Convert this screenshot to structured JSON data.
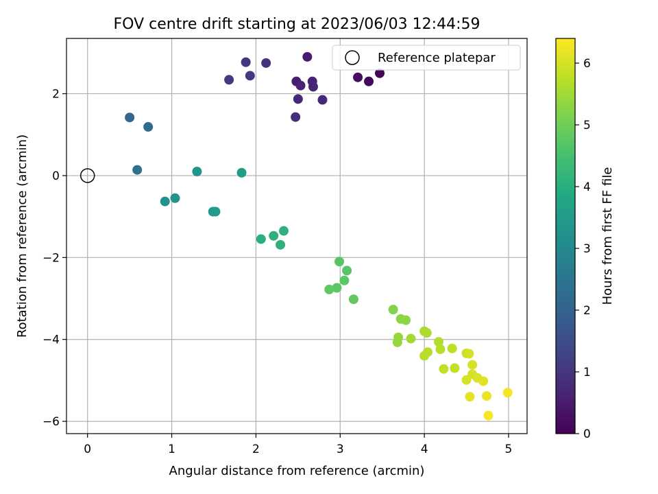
{
  "chart_data": {
    "type": "scatter",
    "title": "FOV centre drift starting at 2023/06/03 12:44:59",
    "xlabel": "Angular distance from reference (arcmin)",
    "ylabel": "Rotation from reference (arcmin)",
    "xlim": [
      -0.25,
      5.22
    ],
    "ylim": [
      -6.3,
      3.35
    ],
    "xticks": [
      0,
      1,
      2,
      3,
      4,
      5
    ],
    "xtick_labels": [
      "0",
      "1",
      "2",
      "3",
      "4",
      "5"
    ],
    "yticks": [
      -6,
      -4,
      -2,
      0,
      2
    ],
    "ytick_labels": [
      "−6",
      "−4",
      "−2",
      "0",
      "2"
    ],
    "grid": true,
    "legend": {
      "position": "top-right",
      "entries": [
        "Reference platepar"
      ]
    },
    "reference_point": {
      "x": 0,
      "y": 0,
      "label": "Reference platepar"
    },
    "colorbar": {
      "label": "Hours from first FF file",
      "range": [
        0,
        6.4
      ],
      "ticks": [
        0,
        1,
        2,
        3,
        4,
        5,
        6
      ],
      "tick_labels": [
        "0",
        "1",
        "2",
        "3",
        "4",
        "5",
        "6"
      ],
      "colormap": "viridis"
    },
    "points": [
      {
        "x": 3.47,
        "y": 2.5,
        "h": 0.1
      },
      {
        "x": 3.34,
        "y": 2.3,
        "h": 0.15
      },
      {
        "x": 3.21,
        "y": 2.4,
        "h": 0.25
      },
      {
        "x": 2.61,
        "y": 2.9,
        "h": 0.5
      },
      {
        "x": 2.48,
        "y": 2.3,
        "h": 0.55
      },
      {
        "x": 2.53,
        "y": 2.2,
        "h": 0.6
      },
      {
        "x": 2.67,
        "y": 2.3,
        "h": 0.6
      },
      {
        "x": 2.68,
        "y": 2.17,
        "h": 0.65
      },
      {
        "x": 2.5,
        "y": 1.87,
        "h": 0.7
      },
      {
        "x": 2.79,
        "y": 1.85,
        "h": 0.7
      },
      {
        "x": 2.47,
        "y": 1.43,
        "h": 0.8
      },
      {
        "x": 2.12,
        "y": 2.75,
        "h": 0.95
      },
      {
        "x": 1.88,
        "y": 2.77,
        "h": 1.0
      },
      {
        "x": 1.93,
        "y": 2.44,
        "h": 1.05
      },
      {
        "x": 1.68,
        "y": 2.34,
        "h": 1.1
      },
      {
        "x": 0.5,
        "y": 1.42,
        "h": 2.1
      },
      {
        "x": 0.72,
        "y": 1.19,
        "h": 2.2
      },
      {
        "x": 0.59,
        "y": 0.14,
        "h": 2.4
      },
      {
        "x": 1.3,
        "y": 0.1,
        "h": 3.3
      },
      {
        "x": 1.83,
        "y": 0.07,
        "h": 3.5
      },
      {
        "x": 0.92,
        "y": -0.63,
        "h": 3.2
      },
      {
        "x": 1.04,
        "y": -0.55,
        "h": 3.3
      },
      {
        "x": 1.49,
        "y": -0.88,
        "h": 3.4
      },
      {
        "x": 1.52,
        "y": -0.88,
        "h": 3.5
      },
      {
        "x": 2.06,
        "y": -1.55,
        "h": 4.0
      },
      {
        "x": 2.21,
        "y": -1.47,
        "h": 4.05
      },
      {
        "x": 2.33,
        "y": -1.35,
        "h": 4.1
      },
      {
        "x": 2.29,
        "y": -1.69,
        "h": 4.1
      },
      {
        "x": 2.99,
        "y": -2.1,
        "h": 4.7
      },
      {
        "x": 3.08,
        "y": -2.32,
        "h": 4.7
      },
      {
        "x": 3.05,
        "y": -2.56,
        "h": 4.75
      },
      {
        "x": 2.96,
        "y": -2.74,
        "h": 4.75
      },
      {
        "x": 2.87,
        "y": -2.78,
        "h": 4.8
      },
      {
        "x": 3.16,
        "y": -3.02,
        "h": 4.85
      },
      {
        "x": 3.63,
        "y": -3.27,
        "h": 5.2
      },
      {
        "x": 3.72,
        "y": -3.5,
        "h": 5.3
      },
      {
        "x": 3.78,
        "y": -3.53,
        "h": 5.3
      },
      {
        "x": 3.69,
        "y": -3.95,
        "h": 5.4
      },
      {
        "x": 3.68,
        "y": -4.07,
        "h": 5.4
      },
      {
        "x": 3.84,
        "y": -3.98,
        "h": 5.5
      },
      {
        "x": 4.0,
        "y": -3.8,
        "h": 5.6
      },
      {
        "x": 4.03,
        "y": -3.84,
        "h": 5.6
      },
      {
        "x": 4.17,
        "y": -4.06,
        "h": 5.65
      },
      {
        "x": 4.19,
        "y": -4.24,
        "h": 5.7
      },
      {
        "x": 4.04,
        "y": -4.31,
        "h": 5.7
      },
      {
        "x": 4.0,
        "y": -4.4,
        "h": 5.7
      },
      {
        "x": 4.33,
        "y": -4.22,
        "h": 5.75
      },
      {
        "x": 4.23,
        "y": -4.72,
        "h": 5.8
      },
      {
        "x": 4.36,
        "y": -4.7,
        "h": 5.8
      },
      {
        "x": 4.5,
        "y": -4.34,
        "h": 5.9
      },
      {
        "x": 4.53,
        "y": -4.35,
        "h": 5.95
      },
      {
        "x": 4.57,
        "y": -4.62,
        "h": 6.0
      },
      {
        "x": 4.57,
        "y": -4.85,
        "h": 6.0
      },
      {
        "x": 4.5,
        "y": -4.99,
        "h": 6.0
      },
      {
        "x": 4.63,
        "y": -4.94,
        "h": 6.05
      },
      {
        "x": 4.7,
        "y": -5.02,
        "h": 6.1
      },
      {
        "x": 4.54,
        "y": -5.4,
        "h": 6.15
      },
      {
        "x": 4.74,
        "y": -5.38,
        "h": 6.2
      },
      {
        "x": 4.99,
        "y": -5.3,
        "h": 6.3
      },
      {
        "x": 4.76,
        "y": -5.86,
        "h": 6.35
      }
    ]
  }
}
